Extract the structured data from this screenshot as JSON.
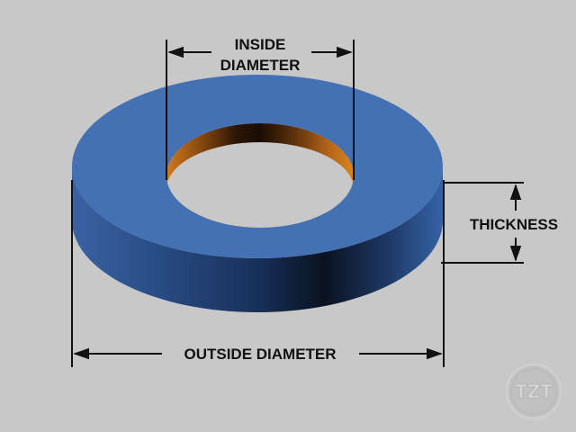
{
  "labels": {
    "inside_line1": "INSIDE",
    "inside_line2": "DIAMETER",
    "thickness": "THICKNESS",
    "outside": "OUTSIDE DIAMETER"
  },
  "watermark": "TZT",
  "colors": {
    "background": "#c8c8c8",
    "ring_top": "#4471b3",
    "ring_side_dark": "#0a1220",
    "ring_side_light": "#3a62a2",
    "bore_light": "#d07a1c",
    "bore_dark": "#1a0c02",
    "dimension_lines": "#111111"
  }
}
